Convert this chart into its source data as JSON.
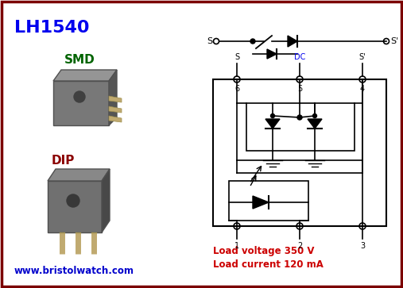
{
  "title": "LH1540",
  "title_color": "#0000EE",
  "bg_color": "#FFFFFF",
  "border_color": "#7B0000",
  "smd_label": "SMD",
  "smd_color": "#006400",
  "dip_label": "DIP",
  "dip_color": "#8B0000",
  "website": "www.bristolwatch.com",
  "website_color": "#0000CC",
  "load_voltage": "Load voltage 350 V",
  "load_current": "Load current 120 mA",
  "specs_color": "#CC0000",
  "dc": "#000000",
  "dc_label_color": "#0000EE",
  "chip_body": "#808080",
  "chip_top": "#9A9A9A",
  "chip_right": "#5A5A5A",
  "chip_pin": "#C0AA70",
  "chip_dot": "#404040"
}
